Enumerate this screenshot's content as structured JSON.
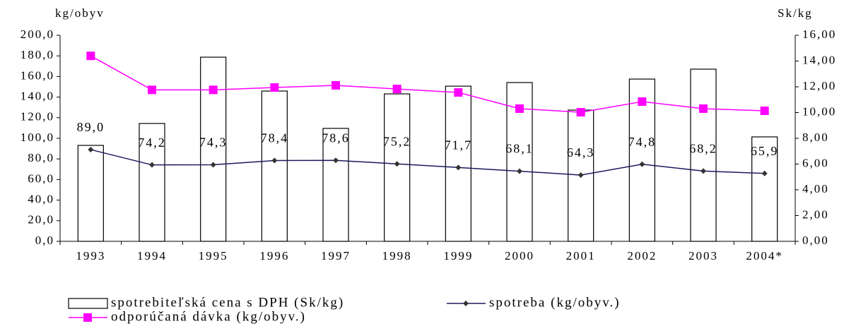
{
  "chart_data": {
    "type": "bar_line",
    "y_label": "kg/obyv",
    "y2_label": "Sk/kg",
    "categories": [
      "1993",
      "1994",
      "1995",
      "1996",
      "1997",
      "1998",
      "1999",
      "2000",
      "2001",
      "2002",
      "2003",
      "2004*"
    ],
    "series": [
      {
        "name": "spotrebiteľská cena s DPH (Sk/kg)",
        "type": "bar",
        "axis": "y2",
        "color": "#ffffff",
        "values": [
          7.45,
          9.15,
          14.3,
          11.67,
          8.77,
          11.45,
          12.05,
          12.33,
          10.19,
          12.6,
          13.37,
          8.11
        ]
      },
      {
        "name": "spotreba (kg/obyv.)",
        "type": "line",
        "color": "#1a1a5e",
        "values": [
          89.0,
          74.2,
          74.3,
          78.4,
          78.6,
          75.2,
          71.7,
          68.1,
          64.3,
          74.8,
          68.2,
          65.9
        ],
        "value_labels": [
          "89,0",
          "74,2",
          "74,3",
          "78,4",
          "78,6",
          "75,2",
          "71,7",
          "68,1",
          "64,3",
          "74,8",
          "68,2",
          "65,9"
        ]
      },
      {
        "name": "odporúčaná dávka (kg/obyv.)",
        "type": "line",
        "color": "#ff00ff",
        "values": [
          180,
          147,
          147,
          149.3,
          151.4,
          147.9,
          144.5,
          128.8,
          125.3,
          135.6,
          128.8,
          126.7
        ]
      }
    ],
    "ylim": [
      0,
      200
    ],
    "yticks": [
      {
        "value": 0,
        "label": "0,0"
      },
      {
        "value": 20,
        "label": "20,0"
      },
      {
        "value": 40,
        "label": "40,0"
      },
      {
        "value": 60,
        "label": "60,0"
      },
      {
        "value": 80,
        "label": "80,0"
      },
      {
        "value": 100,
        "label": "100,0"
      },
      {
        "value": 120,
        "label": "120,0"
      },
      {
        "value": 140,
        "label": "140,0"
      },
      {
        "value": 160,
        "label": "160,0"
      },
      {
        "value": 180,
        "label": "180,0"
      },
      {
        "value": 200,
        "label": "200,0"
      }
    ],
    "y2lim": [
      0,
      16
    ],
    "y2ticks": [
      {
        "value": 0,
        "label": "0,00"
      },
      {
        "value": 2,
        "label": "2,00"
      },
      {
        "value": 4,
        "label": "4,00"
      },
      {
        "value": 6,
        "label": "6,00"
      },
      {
        "value": 8,
        "label": "8,00"
      },
      {
        "value": 10,
        "label": "10,00"
      },
      {
        "value": 12,
        "label": "12,00"
      },
      {
        "value": 14,
        "label": "14,00"
      },
      {
        "value": 16,
        "label": "16,00"
      }
    ]
  }
}
